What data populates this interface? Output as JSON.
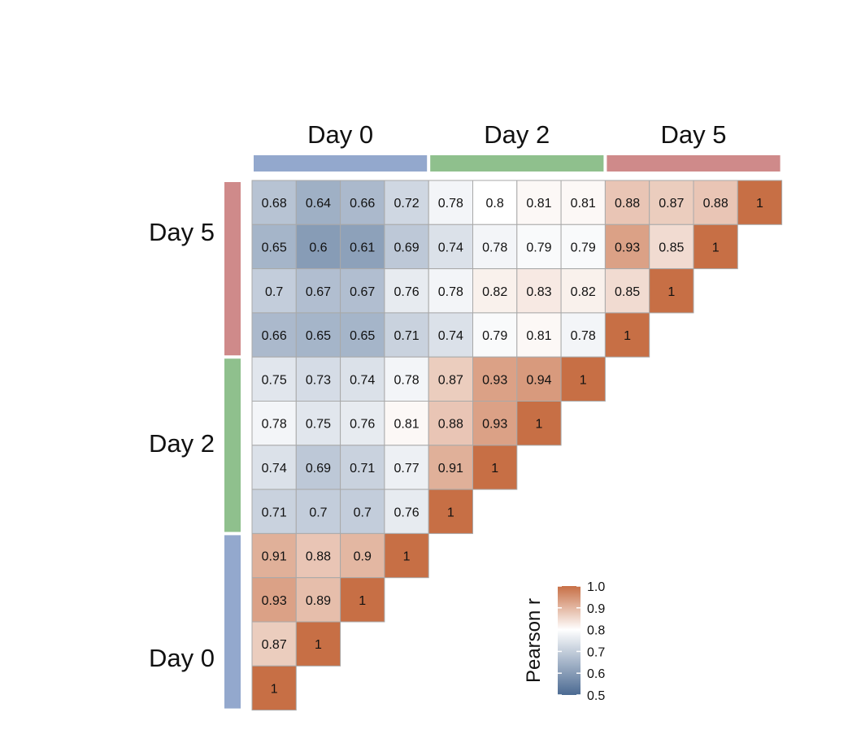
{
  "chart_data": {
    "type": "heatmap",
    "groups": [
      "Day 0",
      "Day 2",
      "Day 5"
    ],
    "samples_per_group": 4,
    "group_colors": {
      "Day 0": "#93a8cd",
      "Day 2": "#8fc08d",
      "Day 5": "#cf8a8a"
    },
    "rows_top_to_bottom": [
      [
        0.68,
        0.64,
        0.66,
        0.72,
        0.78,
        0.8,
        0.81,
        0.81,
        0.88,
        0.87,
        0.88,
        1
      ],
      [
        0.65,
        0.6,
        0.61,
        0.69,
        0.74,
        0.78,
        0.79,
        0.79,
        0.93,
        0.85,
        1
      ],
      [
        0.7,
        0.67,
        0.67,
        0.76,
        0.78,
        0.82,
        0.83,
        0.82,
        0.85,
        1
      ],
      [
        0.66,
        0.65,
        0.65,
        0.71,
        0.74,
        0.79,
        0.81,
        0.78,
        1
      ],
      [
        0.75,
        0.73,
        0.74,
        0.78,
        0.87,
        0.93,
        0.94,
        1
      ],
      [
        0.78,
        0.75,
        0.76,
        0.81,
        0.88,
        0.93,
        1
      ],
      [
        0.74,
        0.69,
        0.71,
        0.77,
        0.91,
        1
      ],
      [
        0.71,
        0.7,
        0.7,
        0.76,
        1
      ],
      [
        0.91,
        0.88,
        0.9,
        1
      ],
      [
        0.93,
        0.89,
        1
      ],
      [
        0.87,
        1
      ],
      [
        1
      ]
    ],
    "column_labels": [
      "Day 0",
      "Day 2",
      "Day 5"
    ],
    "row_labels": [
      "Day 5",
      "Day 2",
      "Day 0"
    ],
    "color_scale": {
      "title": "Pearson r",
      "range": [
        0.5,
        1.0
      ],
      "ticks": [
        "1.0",
        "0.9",
        "0.8",
        "0.7",
        "0.6",
        "0.5"
      ],
      "low_color": "#4b6a92",
      "mid_color": "#ffffff",
      "mid_value": 0.8,
      "high_color": "#c76f45"
    }
  }
}
